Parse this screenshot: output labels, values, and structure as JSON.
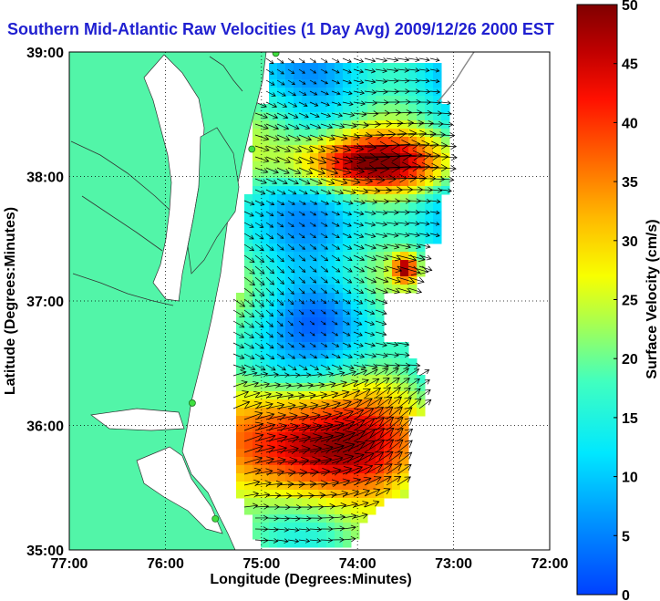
{
  "title": "Southern Mid-Atlantic Raw Velocities (1 Day Avg) 2009/12/26 2000 EST",
  "axes": {
    "xlabel": "Longitude (Degrees:Minutes)",
    "ylabel": "Latitude (Degrees:Minutes)",
    "xticks": [
      "77:00",
      "76:00",
      "75:00",
      "74:00",
      "73:00",
      "72:00"
    ],
    "yticks": [
      "39:00",
      "38:00",
      "37:00",
      "36:00",
      "35:00"
    ],
    "xlim": [
      -77,
      -72
    ],
    "ylim": [
      35,
      39
    ],
    "grid": "dotted"
  },
  "colorbar": {
    "label": "Surface Velocity (cm/s)",
    "ticks": [
      "0",
      "5",
      "10",
      "15",
      "20",
      "25",
      "30",
      "35",
      "40",
      "45",
      "50"
    ],
    "range": [
      0,
      50
    ],
    "colormap": "jet"
  },
  "colors": {
    "land": "#52f5a8",
    "title": "#1f1fd0",
    "station_markers": "#40e040"
  },
  "stations_lonlat": [
    [
      -74.85,
      38.99
    ],
    [
      -75.1,
      38.22
    ],
    [
      -75.72,
      36.18
    ],
    [
      -75.48,
      35.25
    ]
  ]
}
